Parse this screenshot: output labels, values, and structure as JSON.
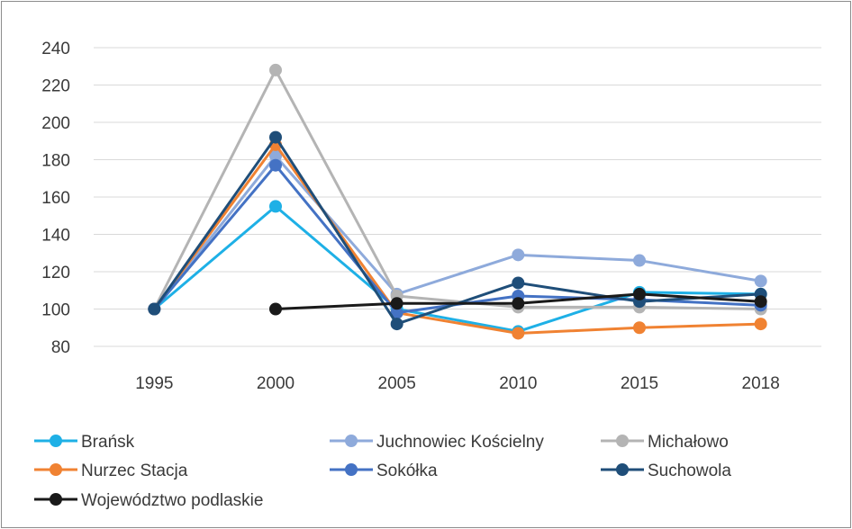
{
  "chart_data": {
    "type": "line",
    "categories": [
      "1995",
      "2000",
      "2005",
      "2010",
      "2015",
      "2018"
    ],
    "y_ticks": [
      "240",
      "220",
      "200",
      "180",
      "160",
      "140",
      "120",
      "100",
      "80"
    ],
    "ylim": [
      80,
      240
    ],
    "grid": true,
    "legend_position": "bottom",
    "series": [
      {
        "name": "Brańsk",
        "color": "#1eb0e6",
        "values": [
          100,
          155,
          100,
          88,
          109,
          108
        ]
      },
      {
        "name": "Juchnowiec Kościelny",
        "color": "#8eaadb",
        "values": [
          100,
          182,
          108,
          129,
          126,
          115
        ]
      },
      {
        "name": "Michałowo",
        "color": "#b4b4b4",
        "values": [
          100,
          228,
          107,
          101,
          101,
          100
        ]
      },
      {
        "name": "Nurzec Stacja",
        "color": "#f08232",
        "values": [
          100,
          188,
          98,
          87,
          90,
          92
        ]
      },
      {
        "name": "Sokółka",
        "color": "#4472c4",
        "values": [
          100,
          177,
          98,
          107,
          105,
          102
        ]
      },
      {
        "name": "Suchowola",
        "color": "#1f4e79",
        "values": [
          100,
          192,
          92,
          114,
          104,
          108
        ]
      },
      {
        "name": "Województwo podlaskie",
        "color": "#1a1a1a",
        "values": [
          null,
          100,
          103,
          103,
          108,
          104
        ]
      }
    ]
  }
}
